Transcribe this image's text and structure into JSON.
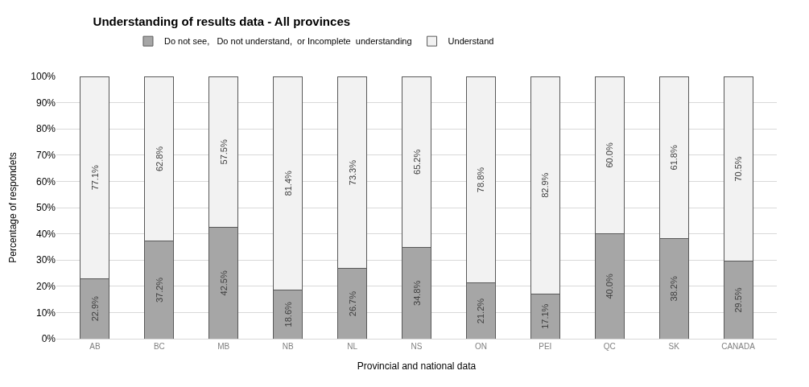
{
  "chart_data": {
    "type": "bar",
    "stacked": true,
    "title": "Understanding of results data - All provinces",
    "xlabel": "Provincial and national data",
    "ylabel": "Percentage of respondets",
    "categories": [
      "AB",
      "BC",
      "MB",
      "NB",
      "NL",
      "NS",
      "ON",
      "PEI",
      "QC",
      "SK",
      "CANADA"
    ],
    "series": [
      {
        "name": "Do not see,   Do not understand,  or Incomplete  understanding",
        "color": "#a6a6a6",
        "values": [
          22.9,
          37.2,
          42.5,
          18.6,
          26.7,
          34.8,
          21.2,
          17.1,
          40.0,
          38.2,
          29.5
        ],
        "value_labels": [
          "22.9%",
          "37.2%",
          "42.5%",
          "18.6%",
          "26.7%",
          "34.8%",
          "21.2%",
          "17.1%",
          "40.0%",
          "38.2%",
          "29.5%"
        ]
      },
      {
        "name": "Understand",
        "color": "#f2f2f2",
        "values": [
          77.1,
          62.8,
          57.5,
          81.4,
          73.3,
          65.2,
          78.8,
          82.9,
          60.0,
          61.8,
          70.5
        ],
        "value_labels": [
          "77.1%",
          "62.8%",
          "57.5%",
          "81.4%",
          "73.3%",
          "65.2%",
          "78.8%",
          "82.9%",
          "60.0%",
          "61.8%",
          "70.5%"
        ]
      }
    ],
    "ylim": [
      0,
      100
    ],
    "yticks": [
      {
        "value": 0,
        "label": "0%"
      },
      {
        "value": 10,
        "label": "10%"
      },
      {
        "value": 20,
        "label": "20%"
      },
      {
        "value": 30,
        "label": "30%"
      },
      {
        "value": 40,
        "label": "40%"
      },
      {
        "value": 50,
        "label": "50%"
      },
      {
        "value": 60,
        "label": "60%"
      },
      {
        "value": 70,
        "label": "70%"
      },
      {
        "value": 80,
        "label": "80%"
      },
      {
        "value": 90,
        "label": "90%"
      },
      {
        "value": 100,
        "label": "100%"
      }
    ],
    "grid": "y",
    "legend": "top left"
  }
}
